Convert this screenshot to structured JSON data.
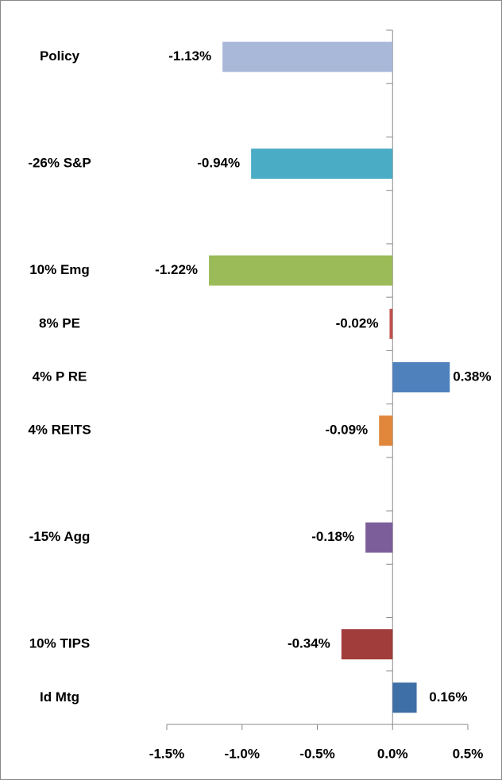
{
  "chart_data": {
    "type": "bar",
    "orientation": "horizontal",
    "categories": [
      "Policy",
      null,
      "-26% S&P",
      null,
      "10% Emg",
      "8% PE",
      "4% P RE",
      "4% REITS",
      null,
      "-15% Agg",
      null,
      "10% TIPS",
      "Id Mtg"
    ],
    "values": [
      -1.13,
      null,
      -0.94,
      null,
      -1.22,
      -0.02,
      0.38,
      -0.09,
      null,
      -0.18,
      null,
      -0.34,
      0.16
    ],
    "value_labels": [
      "-1.13%",
      null,
      "-0.94%",
      null,
      "-1.22%",
      "-0.02%",
      "0.38%",
      "-0.09%",
      null,
      "-0.18%",
      null,
      "-0.34%",
      "0.16%"
    ],
    "colors": [
      "#a9b8d9",
      null,
      "#4bacc6",
      null,
      "#9bbb59",
      "#c0504d",
      "#4f81bd",
      "#e0873b",
      null,
      "#7c5f9a",
      null,
      "#a13d3b",
      "#3e6fa6"
    ],
    "xlim": [
      -1.5,
      0.5
    ],
    "xticks": [
      {
        "value": -1.5,
        "label": "-1.5%"
      },
      {
        "value": -1.0,
        "label": "-1.0%"
      },
      {
        "value": -0.5,
        "label": "-0.5%"
      },
      {
        "value": 0.0,
        "label": "0.0%"
      },
      {
        "value": 0.5,
        "label": "0.5%"
      }
    ],
    "grid": false
  }
}
